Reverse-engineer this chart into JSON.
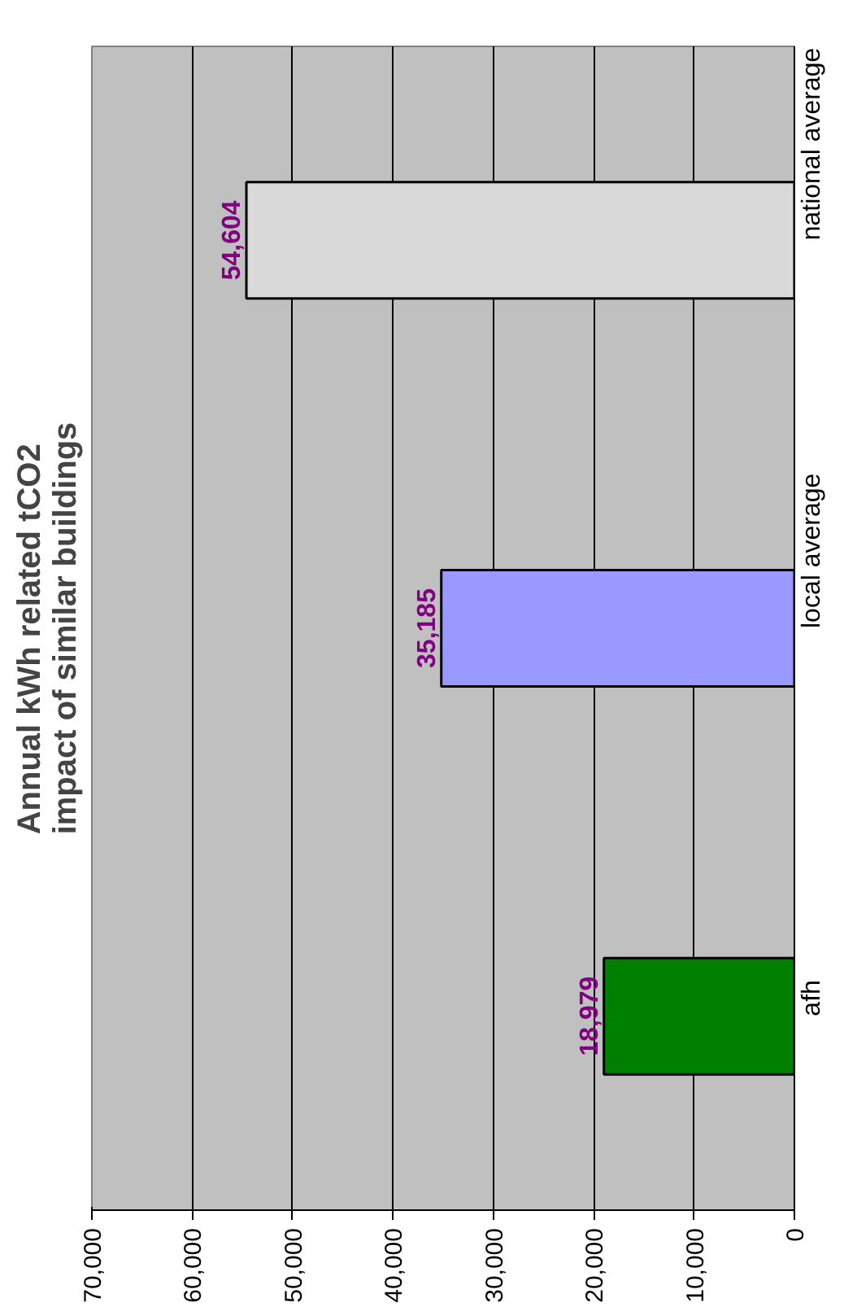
{
  "chart_data": {
    "type": "bar",
    "orientation": "horizontal",
    "title": "Annual kWh related tCO2\nimpact of similar buildings",
    "categories": [
      "national average",
      "local average",
      "afh"
    ],
    "values": [
      54604,
      35185,
      18979
    ],
    "colors": [
      "#d9d9d9",
      "#9999ff",
      "#008000"
    ],
    "value_labels": [
      "54,604",
      "35,185",
      "18,979"
    ],
    "xlim": [
      70000,
      0
    ],
    "xticks": [
      {
        "value": 70000,
        "label": "70,000"
      },
      {
        "value": 60000,
        "label": "60,000"
      },
      {
        "value": 50000,
        "label": "50,000"
      },
      {
        "value": 40000,
        "label": "40,000"
      },
      {
        "value": 30000,
        "label": "30,000"
      },
      {
        "value": 20000,
        "label": "20,000"
      },
      {
        "value": 10000,
        "label": "10,000"
      },
      0
    ],
    "grid": "x"
  }
}
